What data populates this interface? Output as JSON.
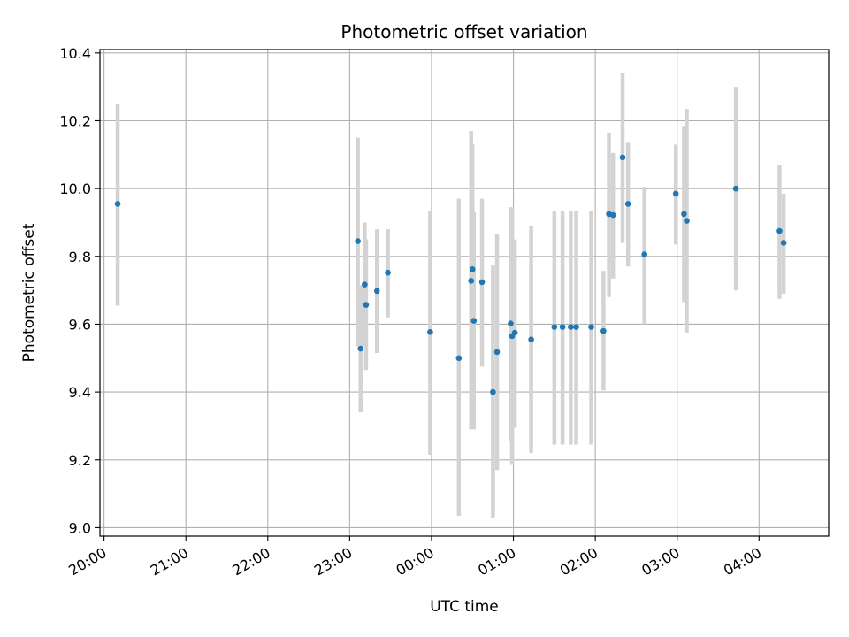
{
  "chart_data": {
    "type": "scatter",
    "title": "Photometric offset variation",
    "xlabel": "UTC time",
    "ylabel": "Photometric offset",
    "x_axis_kind": "time",
    "xlim": [
      "19:57",
      "04:51"
    ],
    "ylim": [
      8.975,
      10.41
    ],
    "x_ticks": [
      "20:00",
      "21:00",
      "22:00",
      "23:00",
      "00:00",
      "01:00",
      "02:00",
      "03:00",
      "04:00"
    ],
    "y_ticks": [
      "9.0",
      "9.2",
      "9.4",
      "9.6",
      "9.8",
      "10.0",
      "10.2",
      "10.4"
    ],
    "grid": true,
    "marker_color": "#1f77b4",
    "errorbar_color": "#d3d3d3",
    "series": [
      {
        "points": [
          {
            "x": "20:10",
            "y": 9.955,
            "ylo": 9.655,
            "yhi": 10.25
          },
          {
            "x": "23:06",
            "y": 9.845,
            "ylo": 9.535,
            "yhi": 10.15
          },
          {
            "x": "23:08",
            "y": 9.528,
            "ylo": 9.34,
            "yhi": 9.715
          },
          {
            "x": "23:11",
            "y": 9.717,
            "ylo": 9.535,
            "yhi": 9.9
          },
          {
            "x": "23:12",
            "y": 9.657,
            "ylo": 9.465,
            "yhi": 9.85
          },
          {
            "x": "23:20",
            "y": 9.698,
            "ylo": 9.515,
            "yhi": 9.88
          },
          {
            "x": "23:28",
            "y": 9.752,
            "ylo": 9.62,
            "yhi": 9.88
          },
          {
            "x": "23:59",
            "y": 9.577,
            "ylo": 9.215,
            "yhi": 9.935
          },
          {
            "x": "00:20",
            "y": 9.5,
            "ylo": 9.035,
            "yhi": 9.97
          },
          {
            "x": "00:29",
            "y": 9.728,
            "ylo": 9.29,
            "yhi": 10.17
          },
          {
            "x": "00:30",
            "y": 9.762,
            "ylo": 9.29,
            "yhi": 10.13
          },
          {
            "x": "00:31",
            "y": 9.61,
            "ylo": 9.29,
            "yhi": 9.93
          },
          {
            "x": "00:37",
            "y": 9.724,
            "ylo": 9.475,
            "yhi": 9.97
          },
          {
            "x": "00:45",
            "y": 9.4,
            "ylo": 9.03,
            "yhi": 9.775
          },
          {
            "x": "00:48",
            "y": 9.518,
            "ylo": 9.17,
            "yhi": 9.865
          },
          {
            "x": "00:58",
            "y": 9.602,
            "ylo": 9.255,
            "yhi": 9.945
          },
          {
            "x": "00:59",
            "y": 9.565,
            "ylo": 9.185,
            "yhi": 9.945
          },
          {
            "x": "01:01",
            "y": 9.575,
            "ylo": 9.295,
            "yhi": 9.85
          },
          {
            "x": "01:13",
            "y": 9.555,
            "ylo": 9.22,
            "yhi": 9.89
          },
          {
            "x": "01:30",
            "y": 9.592,
            "ylo": 9.245,
            "yhi": 9.935
          },
          {
            "x": "01:36",
            "y": 9.592,
            "ylo": 9.245,
            "yhi": 9.935
          },
          {
            "x": "01:42",
            "y": 9.592,
            "ylo": 9.245,
            "yhi": 9.935
          },
          {
            "x": "01:46",
            "y": 9.592,
            "ylo": 9.245,
            "yhi": 9.935
          },
          {
            "x": "01:57",
            "y": 9.592,
            "ylo": 9.245,
            "yhi": 9.935
          },
          {
            "x": "02:06",
            "y": 9.58,
            "ylo": 9.405,
            "yhi": 9.757
          },
          {
            "x": "02:10",
            "y": 9.925,
            "ylo": 9.68,
            "yhi": 10.165
          },
          {
            "x": "02:13",
            "y": 9.922,
            "ylo": 9.735,
            "yhi": 10.105
          },
          {
            "x": "02:20",
            "y": 10.092,
            "ylo": 9.84,
            "yhi": 10.34
          },
          {
            "x": "02:24",
            "y": 9.955,
            "ylo": 9.77,
            "yhi": 10.135
          },
          {
            "x": "02:36",
            "y": 9.806,
            "ylo": 9.6,
            "yhi": 10.005
          },
          {
            "x": "02:59",
            "y": 9.985,
            "ylo": 9.835,
            "yhi": 10.13
          },
          {
            "x": "03:05",
            "y": 9.925,
            "ylo": 9.665,
            "yhi": 10.185
          },
          {
            "x": "03:07",
            "y": 9.905,
            "ylo": 9.575,
            "yhi": 10.235
          },
          {
            "x": "03:43",
            "y": 10.0,
            "ylo": 9.7,
            "yhi": 10.3
          },
          {
            "x": "04:15",
            "y": 9.875,
            "ylo": 9.675,
            "yhi": 10.07
          },
          {
            "x": "04:18",
            "y": 9.84,
            "ylo": 9.69,
            "yhi": 9.985
          }
        ]
      }
    ]
  }
}
